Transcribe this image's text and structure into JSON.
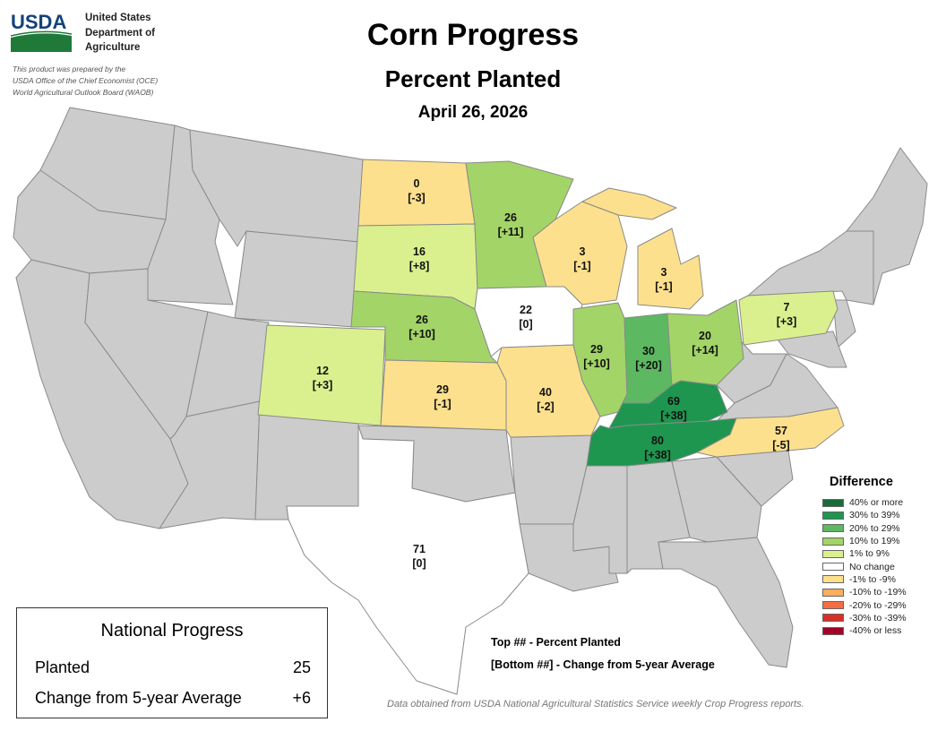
{
  "header": {
    "logo_text": "USDA",
    "agency_lines": [
      "United States",
      "Department of",
      "Agriculture"
    ],
    "credit_lines": [
      "This product was prepared by the",
      "USDA Office of the Chief Economist (OCE)",
      "World Agricultural Outlook Board (WAOB)"
    ],
    "title": "Corn Progress",
    "subtitle": "Percent Planted",
    "date": "April 26, 2026"
  },
  "legend": {
    "title": "Difference",
    "items": [
      {
        "label": "40% or more",
        "color": "#1a6b3a"
      },
      {
        "label": "30% to 39%",
        "color": "#1e9650"
      },
      {
        "label": "20% to 29%",
        "color": "#5db862"
      },
      {
        "label": "10% to 19%",
        "color": "#a3d468"
      },
      {
        "label": "1% to 9%",
        "color": "#daf08e"
      },
      {
        "label": "No change",
        "color": "#ffffff"
      },
      {
        "label": "-1% to -9%",
        "color": "#fde08d"
      },
      {
        "label": "-10% to -19%",
        "color": "#fbae5c"
      },
      {
        "label": "-20% to -29%",
        "color": "#f46d43"
      },
      {
        "label": "-30% to -39%",
        "color": "#d73027"
      },
      {
        "label": "-40% or less",
        "color": "#a50026"
      }
    ]
  },
  "states": [
    {
      "id": "ND",
      "planted": "0",
      "change": "[-3]",
      "color": "#fde08d"
    },
    {
      "id": "SD",
      "planted": "16",
      "change": "[+8]",
      "color": "#daf08e"
    },
    {
      "id": "NE",
      "planted": "26",
      "change": "[+10]",
      "color": "#a3d468"
    },
    {
      "id": "KS",
      "planted": "29",
      "change": "[-1]",
      "color": "#fde08d"
    },
    {
      "id": "CO",
      "planted": "12",
      "change": "[+3]",
      "color": "#daf08e"
    },
    {
      "id": "TX",
      "planted": "71",
      "change": "[0]",
      "color": "#ffffff"
    },
    {
      "id": "MN",
      "planted": "26",
      "change": "[+11]",
      "color": "#a3d468"
    },
    {
      "id": "IA",
      "planted": "22",
      "change": "[0]",
      "color": "#ffffff"
    },
    {
      "id": "MO",
      "planted": "40",
      "change": "[-2]",
      "color": "#fde08d"
    },
    {
      "id": "WI",
      "planted": "3",
      "change": "[-1]",
      "color": "#fde08d"
    },
    {
      "id": "MI",
      "planted": "3",
      "change": "[-1]",
      "color": "#fde08d"
    },
    {
      "id": "IL",
      "planted": "29",
      "change": "[+10]",
      "color": "#a3d468"
    },
    {
      "id": "IN",
      "planted": "30",
      "change": "[+20]",
      "color": "#5db862"
    },
    {
      "id": "OH",
      "planted": "20",
      "change": "[+14]",
      "color": "#a3d468"
    },
    {
      "id": "KY",
      "planted": "69",
      "change": "[+38]",
      "color": "#1e9650"
    },
    {
      "id": "TN",
      "planted": "80",
      "change": "[+38]",
      "color": "#1e9650"
    },
    {
      "id": "PA",
      "planted": "7",
      "change": "[+3]",
      "color": "#daf08e"
    },
    {
      "id": "NC",
      "planted": "57",
      "change": "[-5]",
      "color": "#fde08d"
    }
  ],
  "national": {
    "title": "National Progress",
    "planted_label": "Planted",
    "planted_value": "25",
    "change_label": "Change from 5-year Average",
    "change_value": "+6"
  },
  "key": {
    "line1": "Top ## - Percent Planted",
    "line2": "[Bottom ##] - Change from 5-year Average"
  },
  "source": "Data obtained from USDA National Agricultural Statistics Service weekly Crop Progress reports."
}
